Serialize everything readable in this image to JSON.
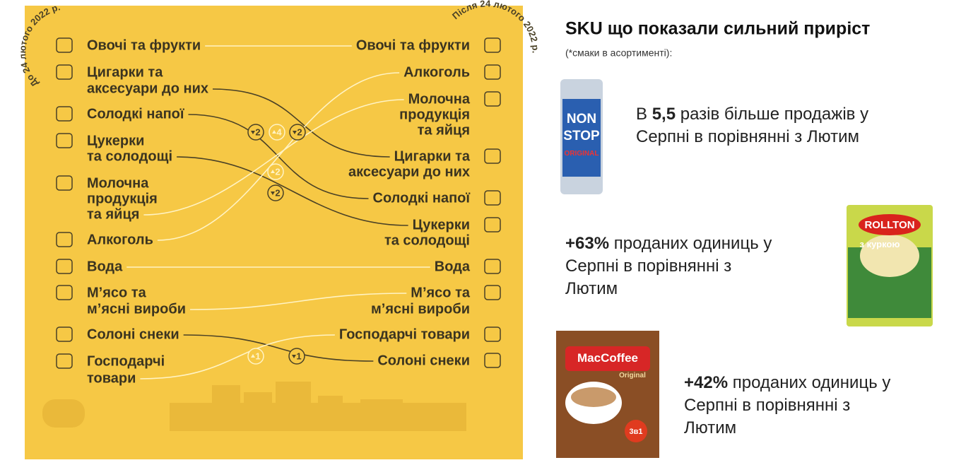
{
  "left_panel": {
    "before_label": "До 24 лютого 2022 р.",
    "after_label": "Після 24 лютого 2022 р.",
    "before": [
      [
        "Овочі та фрукти"
      ],
      [
        "Цигарки та",
        "аксесуари до них"
      ],
      [
        "Солодкі напої"
      ],
      [
        "Цукерки",
        "та солодощі"
      ],
      [
        "Молочна",
        "продукція",
        "та яйця"
      ],
      [
        "Алкоголь"
      ],
      [
        "Вода"
      ],
      [
        "М’ясо та",
        "м’ясні вироби"
      ],
      [
        "Солоні снеки"
      ],
      [
        "Господарчі",
        "товари"
      ]
    ],
    "after": [
      [
        "Овочі та фрукти"
      ],
      [
        "Алкоголь"
      ],
      [
        "Молочна",
        "продукція",
        "та яйця"
      ],
      [
        "Цигарки та",
        "аксесуари до них"
      ],
      [
        "Солодкі напої"
      ],
      [
        "Цукерки",
        "та солодощі"
      ],
      [
        "Вода"
      ],
      [
        "М’ясо та",
        "м’ясні вироби"
      ],
      [
        "Господарчі товари"
      ],
      [
        "Солоні снеки"
      ]
    ],
    "badges": [
      {
        "text": "2",
        "dir": "down"
      },
      {
        "text": "4",
        "dir": "up"
      },
      {
        "text": "2",
        "dir": "down"
      },
      {
        "text": "2",
        "dir": "up"
      },
      {
        "text": "2",
        "dir": "down"
      },
      {
        "text": "1",
        "dir": "up"
      },
      {
        "text": "1",
        "dir": "down"
      }
    ]
  },
  "right_panel": {
    "title": "SKU що показали сильний приріст",
    "subtitle": "(*смаки в асортименті):",
    "products": [
      {
        "label_lines": [
          "NON",
          "STOP",
          "ORIGINAL"
        ],
        "lead": "В ",
        "highlight": "5,5",
        "line1": " разів більше продажів у",
        "rest": [
          "Серпні в порівнянні з Лютим"
        ]
      },
      {
        "label_lines": [
          "ROLLTON",
          "з куркою"
        ],
        "highlight": "+63%",
        "line1": " проданих одиниць у",
        "rest": [
          "Серпні в порівнянні з",
          "Лютим"
        ]
      },
      {
        "label_lines": [
          "MacCoffee",
          "Original",
          "3в1"
        ],
        "highlight": "+42%",
        "line1": " проданих одиниць у",
        "rest": [
          "Серпні в порівнянні з",
          "Лютим"
        ]
      }
    ]
  }
}
